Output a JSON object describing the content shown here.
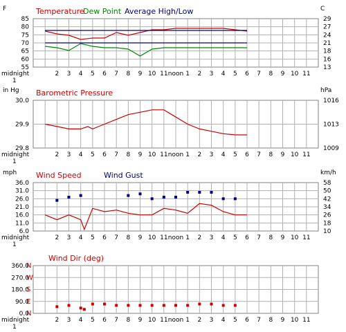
{
  "chart_data": [
    {
      "id": "temperature",
      "type": "line",
      "unit_left": "F",
      "unit_right": "C",
      "legend": [
        {
          "label": "Temperature",
          "color": "#cc0000"
        },
        {
          "label": "Dew Point",
          "color": "#008800"
        },
        {
          "label": "Average High/Low",
          "color": "#000080"
        }
      ],
      "ylim": [
        55,
        90
      ],
      "yticks": [
        "85",
        "80",
        "75",
        "70",
        "65",
        "60",
        "55"
      ],
      "yticks_right": [
        "29",
        "27",
        "24",
        "21",
        "18",
        "16",
        "13"
      ],
      "xticks": [
        "midnight",
        "2",
        "3",
        "4",
        "5",
        "6",
        "7",
        "8",
        "9",
        "10",
        "11",
        "noon",
        "1",
        "2",
        "3",
        "4",
        "5",
        "6",
        "7",
        "8",
        "9",
        "10",
        "11"
      ],
      "xticks_sub": "1",
      "series": [
        {
          "name": "Temperature",
          "color": "#cc0000",
          "x": [
            0,
            1,
            2,
            3,
            4,
            5,
            6,
            7,
            8,
            9,
            10,
            11,
            12,
            13,
            14,
            15,
            16,
            17
          ],
          "y": [
            81,
            79,
            78,
            75,
            76,
            76,
            80,
            78,
            80,
            82,
            82,
            83,
            83,
            83,
            83,
            83,
            82,
            81
          ]
        },
        {
          "name": "Dew Point",
          "color": "#008800",
          "x": [
            0,
            1,
            2,
            3,
            4,
            5,
            6,
            7,
            8,
            9,
            10,
            11,
            12,
            13,
            14,
            15,
            16,
            17
          ],
          "y": [
            70,
            69,
            67,
            72,
            70,
            69,
            69,
            68,
            63,
            68,
            69,
            69,
            69,
            69,
            69,
            69,
            69,
            69
          ]
        },
        {
          "name": "Average High",
          "color": "#000080",
          "x": [
            0,
            17
          ],
          "y": [
            81.5,
            81.5
          ]
        },
        {
          "name": "Average Low",
          "color": "#000080",
          "x": [
            0,
            17
          ],
          "y": [
            72.5,
            72.5
          ]
        }
      ]
    },
    {
      "id": "pressure",
      "type": "line",
      "unit_left": "in Hg",
      "unit_right": "hPa",
      "legend": [
        {
          "label": "Barometric Pressure",
          "color": "#cc0000"
        }
      ],
      "ylim": [
        29.8,
        30.0
      ],
      "yticks": [
        "30.0",
        "29.9",
        "29.8"
      ],
      "yticks_right": [
        "1016",
        "1013",
        "1009"
      ],
      "xticks": [
        "midnight",
        "2",
        "3",
        "4",
        "5",
        "6",
        "7",
        "8",
        "9",
        "10",
        "11",
        "noon",
        "1",
        "2",
        "3",
        "4",
        "5",
        "6",
        "7",
        "8",
        "9",
        "10",
        "11"
      ],
      "xticks_sub": "1",
      "series": [
        {
          "name": "Barometric Pressure",
          "color": "#cc0000",
          "x": [
            0,
            1,
            2,
            3,
            3.6,
            4,
            5,
            6,
            7,
            8,
            9,
            10,
            11,
            12,
            13,
            14,
            15,
            16,
            17
          ],
          "y": [
            29.9,
            29.89,
            29.88,
            29.88,
            29.89,
            29.88,
            29.9,
            29.92,
            29.94,
            29.95,
            29.96,
            29.96,
            29.93,
            29.9,
            29.88,
            29.87,
            29.86,
            29.855,
            29.855
          ]
        }
      ]
    },
    {
      "id": "wind",
      "type": "line",
      "unit_left": "mph",
      "unit_right": "km/h",
      "legend": [
        {
          "label": "Wind Speed",
          "color": "#cc0000"
        },
        {
          "label": "Wind Gust",
          "color": "#000080"
        }
      ],
      "ylim": [
        6,
        36
      ],
      "yticks": [
        "36.0",
        "31.0",
        "26.0",
        "21.0",
        "16.0",
        "11.0",
        "6.0"
      ],
      "yticks_right": [
        "58",
        "50",
        "42",
        "34",
        "26",
        "18",
        "10"
      ],
      "xticks": [
        "midnight",
        "2",
        "3",
        "4",
        "5",
        "6",
        "7",
        "8",
        "9",
        "10",
        "11",
        "noon",
        "1",
        "2",
        "3",
        "4",
        "5",
        "6",
        "7",
        "8",
        "9",
        "10",
        "11"
      ],
      "xticks_sub": "1",
      "series": [
        {
          "name": "Wind Speed",
          "color": "#cc0000",
          "style": "line",
          "x": [
            0,
            1,
            2,
            3,
            3.3,
            4,
            5,
            6,
            7,
            8,
            9,
            10,
            11,
            12,
            13,
            14,
            15,
            16,
            17
          ],
          "y": [
            16,
            13,
            16,
            13,
            7,
            20,
            18,
            19,
            17,
            16,
            16,
            20,
            19,
            17,
            23,
            22,
            18,
            16,
            16
          ]
        },
        {
          "name": "Wind Gust",
          "color": "#000080",
          "style": "points",
          "x": [
            1,
            2,
            3,
            7,
            8,
            9,
            10,
            11,
            12,
            13,
            14,
            15,
            16
          ],
          "y": [
            25,
            27,
            28,
            28,
            29,
            26,
            27,
            27,
            30,
            30,
            30,
            26,
            26
          ]
        }
      ]
    },
    {
      "id": "winddir",
      "type": "scatter",
      "legend": [
        {
          "label": "Wind Dir (deg)",
          "color": "#cc0000"
        }
      ],
      "ylim": [
        0,
        360
      ],
      "yticks": [
        "360.0",
        "270.0",
        "180.0",
        "90.0",
        "0.0"
      ],
      "compass": [
        "N",
        "W",
        "S",
        "E",
        "N"
      ],
      "xticks": [
        "midnight",
        "2",
        "3",
        "4",
        "5",
        "6",
        "7",
        "8",
        "9",
        "10",
        "11",
        "noon",
        "1",
        "2",
        "3",
        "4",
        "5",
        "6",
        "7",
        "8",
        "9",
        "10",
        "11"
      ],
      "xticks_sub": "1",
      "series": [
        {
          "name": "Wind Dir (deg)",
          "color": "#cc0000",
          "x": [
            1,
            2,
            3,
            3.3,
            4,
            5,
            6,
            7,
            8,
            9,
            10,
            11,
            12,
            13,
            14,
            15,
            16
          ],
          "y": [
            50,
            60,
            40,
            30,
            70,
            70,
            60,
            60,
            60,
            60,
            60,
            60,
            60,
            70,
            70,
            60,
            60
          ]
        }
      ]
    }
  ]
}
